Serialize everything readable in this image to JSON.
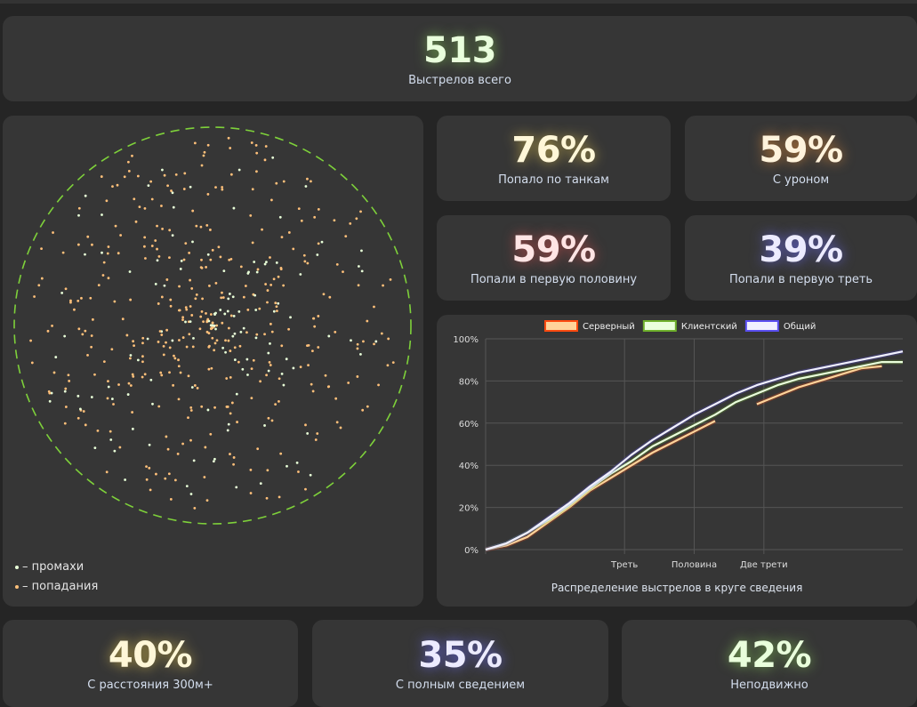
{
  "total": {
    "value": "513",
    "label": "Выстрелов всего"
  },
  "stats": [
    {
      "value": "76%",
      "label": "Попало по танкам"
    },
    {
      "value": "59%",
      "label": "С уроном"
    },
    {
      "value": "59%",
      "label": "Попали в первую половину"
    },
    {
      "value": "39%",
      "label": "Попали в первую треть"
    }
  ],
  "bottom_stats": [
    {
      "value": "40%",
      "label": "С расстояния 300м+"
    },
    {
      "value": "35%",
      "label": "С полным сведением"
    },
    {
      "value": "42%",
      "label": "Неподвижно"
    }
  ],
  "scatter": {
    "legend": {
      "miss": "– промахи",
      "hit": "– попадания"
    },
    "colors": {
      "miss": "#e8ffd8",
      "hit": "#ffc07a",
      "circle": "#7ed13a"
    },
    "total_shots": 513
  },
  "chart_data": {
    "type": "line",
    "title": "Распределение выстрелов в круге сведения",
    "xlabel": "",
    "ylabel": "",
    "xlim": [
      0,
      1
    ],
    "ylim": [
      0,
      100
    ],
    "y_ticks": [
      "0%",
      "20%",
      "40%",
      "60%",
      "80%",
      "100%"
    ],
    "x_ticks": [
      {
        "x": 0.333,
        "label": "Треть"
      },
      {
        "x": 0.5,
        "label": "Половина"
      },
      {
        "x": 0.667,
        "label": "Две трети"
      }
    ],
    "legend_position": "top",
    "x": [
      0,
      0.05,
      0.1,
      0.15,
      0.2,
      0.25,
      0.3,
      0.35,
      0.4,
      0.45,
      0.5,
      0.55,
      0.6,
      0.65,
      0.7,
      0.75,
      0.8,
      0.85,
      0.9,
      0.95,
      1
    ],
    "series": [
      {
        "name": "Серверный",
        "color": "#ffd39a",
        "border": "#ff4a10",
        "values": [
          0,
          2,
          6,
          13,
          20,
          28,
          34,
          40,
          46,
          51,
          56,
          61,
          null,
          69,
          73,
          77,
          80,
          83,
          86,
          87,
          null
        ]
      },
      {
        "name": "Клиентский",
        "color": "#eaffdc",
        "border": "#6fb02c",
        "values": [
          0,
          3,
          8,
          14,
          21,
          29,
          36,
          42,
          49,
          54,
          59,
          64,
          70,
          74,
          78,
          81,
          83,
          85,
          87,
          89,
          89
        ]
      },
      {
        "name": "Общий",
        "color": "#f0f0ff",
        "border": "#5a4ff0",
        "values": [
          0,
          3,
          8,
          15,
          22,
          30,
          37,
          45,
          52,
          58,
          64,
          69,
          74,
          78,
          81,
          84,
          86,
          88,
          90,
          92,
          94
        ]
      }
    ]
  }
}
